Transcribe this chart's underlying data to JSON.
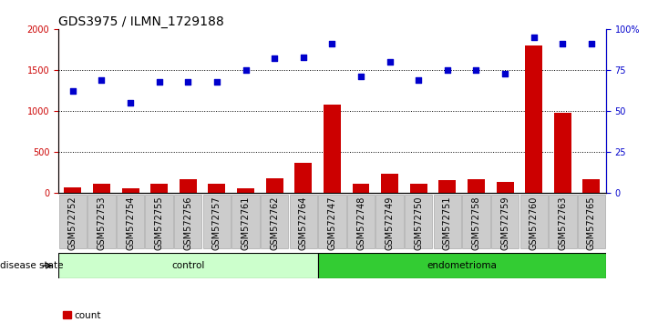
{
  "title": "GDS3975 / ILMN_1729188",
  "samples": [
    "GSM572752",
    "GSM572753",
    "GSM572754",
    "GSM572755",
    "GSM572756",
    "GSM572757",
    "GSM572761",
    "GSM572762",
    "GSM572764",
    "GSM572747",
    "GSM572748",
    "GSM572749",
    "GSM572750",
    "GSM572751",
    "GSM572758",
    "GSM572759",
    "GSM572760",
    "GSM572763",
    "GSM572765"
  ],
  "counts": [
    75,
    110,
    55,
    110,
    170,
    110,
    65,
    180,
    370,
    1080,
    120,
    240,
    120,
    160,
    175,
    135,
    1800,
    980,
    170
  ],
  "percentiles": [
    62,
    69,
    55,
    68,
    68,
    68,
    75,
    82,
    83,
    91,
    71,
    80,
    69,
    75,
    75,
    73,
    95,
    91,
    91
  ],
  "control_count": 9,
  "endometrioma_count": 10,
  "ylim_left": [
    0,
    2000
  ],
  "ylim_right": [
    0,
    100
  ],
  "yticks_left": [
    0,
    500,
    1000,
    1500,
    2000
  ],
  "ytick_labels_left": [
    "0",
    "500",
    "1000",
    "1500",
    "2000"
  ],
  "yticks_right": [
    0,
    25,
    50,
    75,
    100
  ],
  "ytick_labels_right": [
    "0",
    "25",
    "50",
    "75",
    "100%"
  ],
  "bar_color": "#cc0000",
  "dot_color": "#0000cc",
  "control_fill": "#ccffcc",
  "endometrioma_fill": "#33cc33",
  "tick_bg_color": "#cccccc",
  "title_fontsize": 10,
  "label_fontsize": 7.5,
  "tick_fontsize": 7
}
